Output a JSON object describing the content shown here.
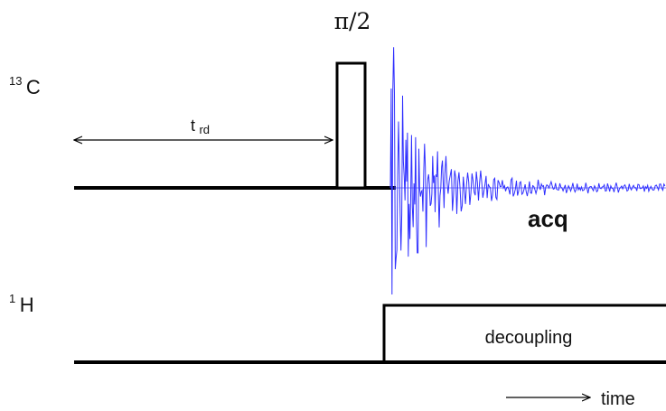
{
  "pulse": {
    "label": "π/2"
  },
  "channels": {
    "carbon": {
      "mass": "13",
      "element": "C"
    },
    "proton": {
      "mass": "1",
      "element": "H"
    }
  },
  "delay": {
    "symbol": "t",
    "subscript": "rd"
  },
  "acquisition": {
    "label": "acq",
    "signal_color": "#3030ff"
  },
  "decoupling": {
    "label": "decoupling"
  },
  "time_axis": {
    "label": "time"
  }
}
